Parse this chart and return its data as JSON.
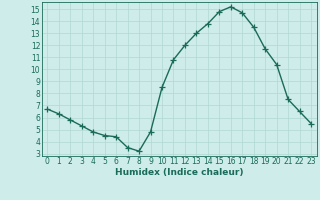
{
  "x": [
    0,
    1,
    2,
    3,
    4,
    5,
    6,
    7,
    8,
    9,
    10,
    11,
    12,
    13,
    14,
    15,
    16,
    17,
    18,
    19,
    20,
    21,
    22,
    23
  ],
  "y": [
    6.7,
    6.3,
    5.8,
    5.3,
    4.8,
    4.5,
    4.4,
    3.5,
    3.2,
    4.8,
    8.5,
    10.8,
    12.0,
    13.0,
    13.8,
    14.8,
    15.2,
    14.7,
    13.5,
    11.7,
    10.4,
    7.5,
    6.5,
    5.5
  ],
  "xlabel": "Humidex (Indice chaleur)",
  "ylim": [
    2.8,
    15.6
  ],
  "xlim": [
    -0.5,
    23.5
  ],
  "line_color": "#1a6b5a",
  "bg_color": "#ceecea",
  "grid_color": "#b0d8d4",
  "yticks": [
    3,
    4,
    5,
    6,
    7,
    8,
    9,
    10,
    11,
    12,
    13,
    14,
    15
  ],
  "xticks": [
    0,
    1,
    2,
    3,
    4,
    5,
    6,
    7,
    8,
    9,
    10,
    11,
    12,
    13,
    14,
    15,
    16,
    17,
    18,
    19,
    20,
    21,
    22,
    23
  ],
  "marker": "+",
  "marker_size": 4,
  "linewidth": 1.0,
  "tick_fontsize": 5.5,
  "xlabel_fontsize": 6.5
}
